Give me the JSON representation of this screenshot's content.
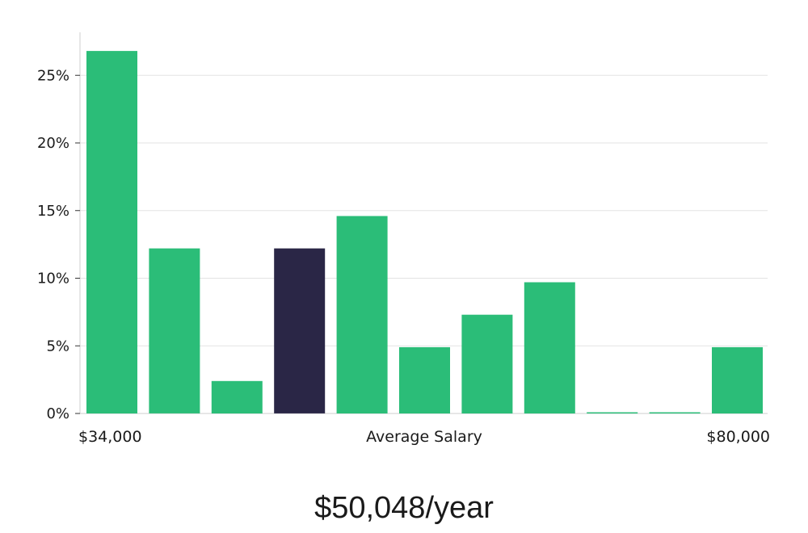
{
  "chart_data": {
    "type": "bar",
    "x_start_label": "$34,000",
    "x_end_label": "$80,000",
    "xlabel": "Average Salary",
    "ylabel": "",
    "ylim": [
      0,
      28
    ],
    "yticks": [
      0,
      5,
      10,
      15,
      20,
      25
    ],
    "ytick_suffix": "%",
    "grid": true,
    "values": [
      26.8,
      12.2,
      2.4,
      12.2,
      14.6,
      4.9,
      7.3,
      9.7,
      0,
      0,
      4.9
    ],
    "highlight_index": 3,
    "colors": {
      "bar": "#2bbd78",
      "highlight": "#2a2646",
      "grid": "#e3e3e3",
      "axis": "#cfcfcf"
    }
  },
  "salary_text": "$50,048/year"
}
